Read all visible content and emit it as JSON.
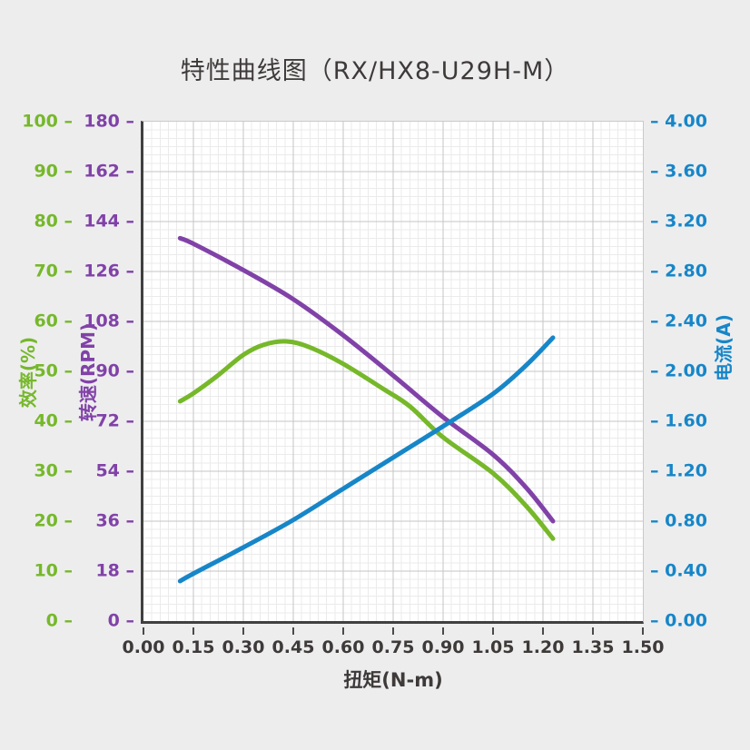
{
  "title": "特性曲线图（RX/HX8-U29H-M）",
  "colors": {
    "background": "#EDEDEE",
    "plot_background": "#FFFFFF",
    "axis_spine": "#404040",
    "grid_major": "#C6C6C6",
    "grid_minor": "#EBEBEB",
    "text": "#3E3A39",
    "efficiency": "#76B82A",
    "speed": "#8142A8",
    "current": "#1786C8"
  },
  "chart_data": {
    "type": "line",
    "title": "特性曲线图（RX/HX8-U29H-M）",
    "xlabel": "扭矩(N-m)",
    "grid": {
      "on": true,
      "x_minor_per_major": 6,
      "y_minor_per_major": 6
    },
    "x_axis": {
      "min": 0,
      "max": 1.5,
      "tick_values": [
        0,
        0.15,
        0.3,
        0.45,
        0.6,
        0.75,
        0.9,
        1.05,
        1.2,
        1.35,
        1.5
      ],
      "tick_labels": [
        "0.00",
        "0.15",
        "0.30",
        "0.45",
        "0.60",
        "0.75",
        "0.90",
        "1.05",
        "1.20",
        "1.35",
        "1.50"
      ]
    },
    "axes": [
      {
        "id": "efficiency",
        "title": "效率(%)",
        "side": "left-outer",
        "min": 0,
        "max": 100,
        "color": "#76B82A",
        "tick_values": [
          100,
          90,
          80,
          70,
          60,
          50,
          40,
          30,
          20,
          10,
          0
        ],
        "tick_labels": [
          "100 –",
          "90 –",
          "80 –",
          "70 –",
          "60 –",
          "50 –",
          "40 –",
          "30 –",
          "20 –",
          "10 –",
          "0 –"
        ]
      },
      {
        "id": "speed",
        "title": "转速(RPM)",
        "side": "left-inner",
        "min": 0,
        "max": 180,
        "color": "#8142A8",
        "tick_values": [
          180,
          162,
          144,
          126,
          108,
          90,
          72,
          54,
          36,
          18,
          0
        ],
        "tick_labels": [
          "180 –",
          "162 –",
          "144 –",
          "126 –",
          "108 –",
          "90 –",
          "72 –",
          "54 –",
          "36 –",
          "18 –",
          "0 –"
        ]
      },
      {
        "id": "current",
        "title": "电流(A)",
        "side": "right",
        "min": 0,
        "max": 4,
        "color": "#1786C8",
        "tick_values": [
          4.0,
          3.6,
          3.2,
          2.8,
          2.4,
          2.0,
          1.6,
          1.2,
          0.8,
          0.4,
          0.0
        ],
        "tick_labels": [
          "– 4.00",
          "– 3.60",
          "– 3.20",
          "– 2.80",
          "– 2.40",
          "– 2.00",
          "– 1.60",
          "– 1.20",
          "– 0.80",
          "– 0.40",
          "– 0.00"
        ]
      }
    ],
    "series": [
      {
        "name": "转速",
        "axis": "speed",
        "color": "#8142A8",
        "stroke_width": 5,
        "points": [
          [
            0.11,
            138
          ],
          [
            0.15,
            136
          ],
          [
            0.3,
            126.5
          ],
          [
            0.45,
            116
          ],
          [
            0.6,
            103
          ],
          [
            0.75,
            88.5
          ],
          [
            0.9,
            73.5
          ],
          [
            1.05,
            60
          ],
          [
            1.15,
            48
          ],
          [
            1.23,
            36
          ]
        ]
      },
      {
        "name": "效率",
        "axis": "efficiency",
        "color": "#76B82A",
        "stroke_width": 5,
        "points": [
          [
            0.11,
            44
          ],
          [
            0.15,
            45.6
          ],
          [
            0.22,
            49
          ],
          [
            0.3,
            53.3
          ],
          [
            0.36,
            55.3
          ],
          [
            0.43,
            56
          ],
          [
            0.5,
            54.8
          ],
          [
            0.6,
            51.5
          ],
          [
            0.72,
            46.5
          ],
          [
            0.8,
            43
          ],
          [
            0.9,
            36.8
          ],
          [
            1.05,
            29.6
          ],
          [
            1.15,
            23
          ],
          [
            1.23,
            16.5
          ]
        ]
      },
      {
        "name": "电流",
        "axis": "current",
        "color": "#1786C8",
        "stroke_width": 5,
        "points": [
          [
            0.11,
            0.32
          ],
          [
            0.15,
            0.38
          ],
          [
            0.3,
            0.59
          ],
          [
            0.45,
            0.81
          ],
          [
            0.6,
            1.06
          ],
          [
            0.75,
            1.31
          ],
          [
            0.9,
            1.56
          ],
          [
            1.05,
            1.82
          ],
          [
            1.15,
            2.05
          ],
          [
            1.23,
            2.27
          ]
        ]
      }
    ]
  }
}
